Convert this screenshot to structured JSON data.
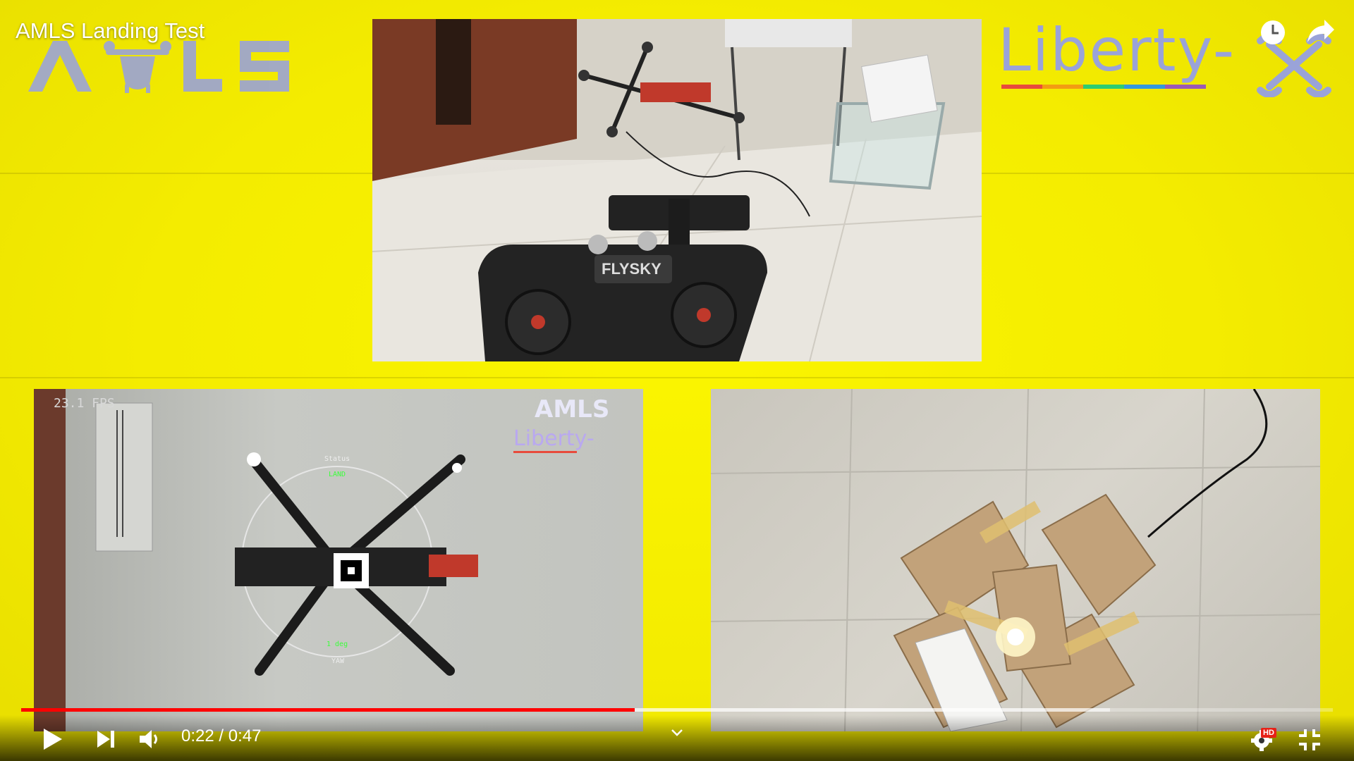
{
  "video": {
    "title": "AMLS Landing Test",
    "time_current": "0:22",
    "time_separator": " / ",
    "time_total": "0:47",
    "progress_played_fraction": 0.468,
    "progress_buffered_fraction": 0.83
  },
  "branding": {
    "amls_logo_text": "AMLS",
    "liberty_logo_text": "Liberty-"
  },
  "overlay": {
    "fps": "23.1 FPS",
    "mode_label": "LAND",
    "status_top": "Status",
    "yaw_value": "1 deg",
    "yaw_label": "YAW"
  },
  "colors": {
    "background": "#f2ea00",
    "progress": "#ff0000",
    "logo": "#9aa3d8",
    "hd_badge": "#e62117"
  },
  "icons": {
    "watch_later": "clock-icon",
    "share": "share-icon",
    "play": "play-icon",
    "next": "next-icon",
    "volume": "volume-icon",
    "settings": "gear-icon",
    "fullscreen_exit": "exit-fullscreen-icon"
  },
  "badges": {
    "hd": "HD"
  }
}
